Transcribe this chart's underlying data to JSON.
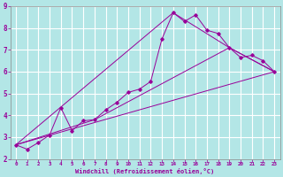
{
  "xlabel": "Windchill (Refroidissement éolien,°C)",
  "bg_color": "#b3e6e6",
  "grid_color": "#ffffff",
  "line_color": "#990099",
  "xlim": [
    -0.5,
    23.5
  ],
  "ylim": [
    2,
    9
  ],
  "xticks": [
    0,
    1,
    2,
    3,
    4,
    5,
    6,
    7,
    8,
    9,
    10,
    11,
    12,
    13,
    14,
    15,
    16,
    17,
    18,
    19,
    20,
    21,
    22,
    23
  ],
  "yticks": [
    2,
    3,
    4,
    5,
    6,
    7,
    8,
    9
  ],
  "series1_x": [
    0,
    1,
    2,
    3,
    4,
    5,
    6,
    7,
    8,
    9,
    10,
    11,
    12,
    13,
    14,
    15,
    16,
    17,
    18,
    19,
    20,
    21,
    22,
    23
  ],
  "series1_y": [
    2.65,
    2.45,
    2.75,
    3.1,
    4.35,
    3.3,
    3.75,
    3.8,
    4.25,
    4.6,
    5.05,
    5.2,
    5.55,
    7.5,
    8.7,
    8.3,
    8.6,
    7.9,
    7.75,
    7.1,
    6.65,
    6.75,
    6.5,
    6.0
  ],
  "series2_x": [
    0,
    7,
    19,
    23
  ],
  "series2_y": [
    2.65,
    3.8,
    7.1,
    6.0
  ],
  "series3_x": [
    0,
    23
  ],
  "series3_y": [
    2.65,
    6.0
  ],
  "series4_x": [
    0,
    14,
    19,
    23
  ],
  "series4_y": [
    2.65,
    8.7,
    7.1,
    6.0
  ]
}
